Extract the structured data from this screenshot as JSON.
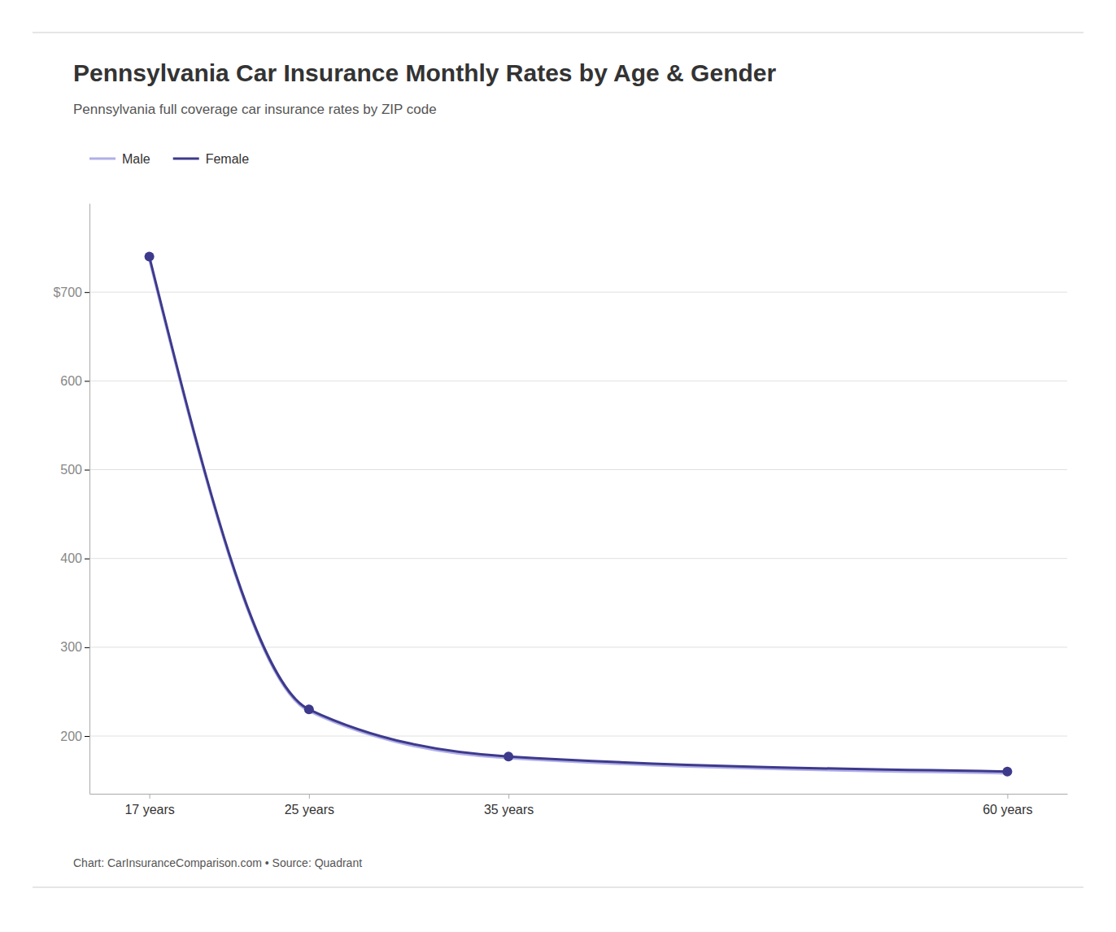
{
  "chart_data": {
    "type": "line",
    "title": "Pennsylvania Car Insurance Monthly Rates by Age & Gender",
    "subtitle": "Pennsylvania full coverage car insurance rates by ZIP code",
    "annotations": [
      "Chart: CarInsuranceComparison.com • Source: Quadrant"
    ],
    "x": [
      17,
      25,
      35,
      60
    ],
    "xlim": [
      14,
      63
    ],
    "xticks": [
      {
        "value": 17,
        "label": "17 years"
      },
      {
        "value": 25,
        "label": "25 years"
      },
      {
        "value": 35,
        "label": "35 years"
      },
      {
        "value": 60,
        "label": "60 years"
      }
    ],
    "ylim": [
      135,
      800
    ],
    "yticks": [
      200,
      300,
      400,
      500,
      600,
      {
        "value": 700,
        "label": "$700"
      }
    ],
    "grid": true,
    "legend": "top-left",
    "series": [
      {
        "name": "Male",
        "color": "#b0aee8",
        "line_style": "solid",
        "values": [
          737,
          228,
          175,
          158
        ]
      },
      {
        "name": "Female",
        "color": "#3d3a8c",
        "line_style": "solid",
        "marker": "circle",
        "values": [
          740,
          230,
          177,
          160
        ]
      }
    ]
  }
}
